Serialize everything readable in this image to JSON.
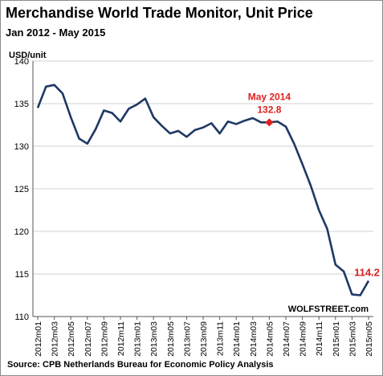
{
  "title": "Merchandise World Trade Monitor, Unit Price",
  "subtitle": "Jan 2012 - May 2015",
  "source": "Source: CPB Netherlands Bureau for Economic Policy Analysis",
  "watermark": "WOLFSTREET.com",
  "colors": {
    "line": "#1f3864",
    "highlight": "#e02020",
    "grid": "#d0d0d0",
    "axis": "#555555"
  },
  "chart_data": {
    "type": "line",
    "title": "Merchandise World Trade Monitor, Unit Price",
    "subtitle": "Jan 2012 - May 2015",
    "ylabel": "USD/unit",
    "xlabel": "",
    "ylim": [
      110,
      140
    ],
    "yticks": [
      110,
      115,
      120,
      125,
      130,
      135,
      140
    ],
    "grid": true,
    "x_tick_labels": [
      "2012m01",
      "2012m03",
      "2012m05",
      "2012m07",
      "2012m09",
      "2012m11",
      "2013m01",
      "2013m03",
      "2013m05",
      "2013m07",
      "2013m09",
      "2013m11",
      "2014m01",
      "2014m03",
      "2014m05",
      "2014m07",
      "2014m09",
      "2014m11",
      "2015m01",
      "2015m03",
      "2015m05"
    ],
    "x": [
      "2012m01",
      "2012m02",
      "2012m03",
      "2012m04",
      "2012m05",
      "2012m06",
      "2012m07",
      "2012m08",
      "2012m09",
      "2012m10",
      "2012m11",
      "2012m12",
      "2013m01",
      "2013m02",
      "2013m03",
      "2013m04",
      "2013m05",
      "2013m06",
      "2013m07",
      "2013m08",
      "2013m09",
      "2013m10",
      "2013m11",
      "2013m12",
      "2014m01",
      "2014m02",
      "2014m03",
      "2014m04",
      "2014m05",
      "2014m06",
      "2014m07",
      "2014m08",
      "2014m09",
      "2014m10",
      "2014m11",
      "2014m12",
      "2015m01",
      "2015m02",
      "2015m03",
      "2015m04",
      "2015m05"
    ],
    "series": [
      {
        "values": [
          134.5,
          137.0,
          137.2,
          136.2,
          133.4,
          130.9,
          130.3,
          132.0,
          134.2,
          133.9,
          132.9,
          134.4,
          134.9,
          135.6,
          133.4,
          132.4,
          131.5,
          131.8,
          131.1,
          131.9,
          132.2,
          132.7,
          131.5,
          132.9,
          132.6,
          133.0,
          133.3,
          132.8,
          132.8,
          132.9,
          132.3,
          130.3,
          127.9,
          125.4,
          122.5,
          120.3,
          116.1,
          115.3,
          112.6,
          112.5,
          114.2
        ]
      }
    ],
    "annotations": [
      {
        "x": "2014m05",
        "y": 132.8,
        "label": "May 2014",
        "value_label": "132.8"
      },
      {
        "x": "2015m05",
        "y": 114.2,
        "value_label": "114.2"
      }
    ]
  }
}
